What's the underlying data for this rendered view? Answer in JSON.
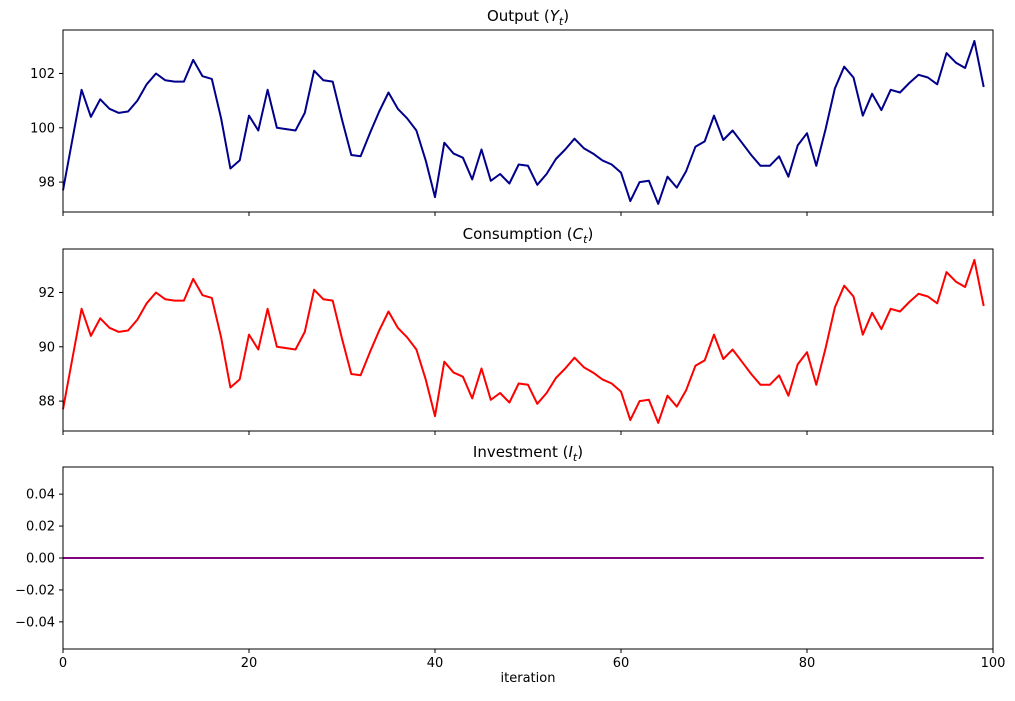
{
  "figure": {
    "xlabel": "iteration",
    "background_color": "#ffffff",
    "axes_color": "#000000",
    "x_ticks": [
      0,
      20,
      40,
      60,
      80,
      100
    ],
    "x_tick_labels": [
      "0",
      "20",
      "40",
      "60",
      "80",
      "100"
    ]
  },
  "chart_data": [
    {
      "id": "output",
      "type": "line",
      "title": {
        "prefix": "Output (",
        "symbol": "Y",
        "subscript": "t",
        "suffix": ")",
        "plain": "Output (Yt)"
      },
      "line_color": "#00008B",
      "xlim": [
        0,
        100
      ],
      "ylim": [
        96.9,
        103.6
      ],
      "y_ticks": [
        98,
        100,
        102
      ],
      "y_tick_labels": [
        "98",
        "100",
        "102"
      ],
      "show_x_tick_labels": false,
      "grid": false,
      "x_start": 0,
      "values": [
        97.7,
        99.55,
        101.4,
        100.4,
        101.05,
        100.7,
        100.55,
        100.6,
        101.0,
        101.6,
        102.0,
        101.75,
        101.7,
        101.7,
        102.5,
        101.9,
        101.8,
        100.35,
        98.5,
        98.8,
        100.45,
        99.9,
        101.4,
        100.0,
        99.95,
        99.9,
        100.55,
        102.1,
        101.75,
        101.7,
        100.3,
        99.0,
        98.95,
        99.8,
        100.6,
        101.3,
        100.7,
        100.35,
        99.9,
        98.8,
        97.45,
        99.45,
        99.05,
        98.9,
        98.1,
        99.2,
        98.05,
        98.3,
        97.95,
        98.65,
        98.6,
        97.9,
        98.3,
        98.85,
        99.2,
        99.6,
        99.25,
        99.05,
        98.8,
        98.65,
        98.35,
        97.3,
        98.0,
        98.05,
        97.2,
        98.2,
        97.8,
        98.4,
        99.3,
        99.5,
        100.45,
        99.55,
        99.9,
        99.45,
        99.0,
        98.6,
        98.6,
        98.95,
        98.2,
        99.35,
        99.8,
        98.6,
        99.95,
        101.45,
        102.25,
        101.85,
        100.45,
        101.25,
        100.65,
        101.4,
        101.3,
        101.65,
        101.95,
        101.85,
        101.6,
        102.75,
        102.4,
        102.2,
        103.2,
        101.5
      ]
    },
    {
      "id": "consumption",
      "type": "line",
      "title": {
        "prefix": "Consumption (",
        "symbol": "C",
        "subscript": "t",
        "suffix": ")",
        "plain": "Consumption (Ct)"
      },
      "line_color": "#FF0000",
      "xlim": [
        0,
        100
      ],
      "ylim": [
        86.9,
        93.6
      ],
      "y_ticks": [
        88,
        90,
        92
      ],
      "y_tick_labels": [
        "88",
        "90",
        "92"
      ],
      "show_x_tick_labels": false,
      "grid": false,
      "x_start": 0,
      "values": [
        87.7,
        89.55,
        91.4,
        90.4,
        91.05,
        90.7,
        90.55,
        90.6,
        91.0,
        91.6,
        92.0,
        91.75,
        91.7,
        91.7,
        92.5,
        91.9,
        91.8,
        90.35,
        88.5,
        88.8,
        90.45,
        89.9,
        91.4,
        90.0,
        89.95,
        89.9,
        90.55,
        92.1,
        91.75,
        91.7,
        90.3,
        89.0,
        88.95,
        89.8,
        90.6,
        91.3,
        90.7,
        90.35,
        89.9,
        88.8,
        87.45,
        89.45,
        89.05,
        88.9,
        88.1,
        89.2,
        88.05,
        88.3,
        87.95,
        88.65,
        88.6,
        87.9,
        88.3,
        88.85,
        89.2,
        89.6,
        89.25,
        89.05,
        88.8,
        88.65,
        88.35,
        87.3,
        88.0,
        88.05,
        87.2,
        88.2,
        87.8,
        88.4,
        89.3,
        89.5,
        90.45,
        89.55,
        89.9,
        89.45,
        89.0,
        88.6,
        88.6,
        88.95,
        88.2,
        89.35,
        89.8,
        88.6,
        89.95,
        91.45,
        92.25,
        91.85,
        90.45,
        91.25,
        90.65,
        91.4,
        91.3,
        91.65,
        91.95,
        91.85,
        91.6,
        92.75,
        92.4,
        92.2,
        93.2,
        91.5
      ]
    },
    {
      "id": "investment",
      "type": "line",
      "title": {
        "prefix": "Investment (",
        "symbol": "I",
        "subscript": "t",
        "suffix": ")",
        "plain": "Investment (It)"
      },
      "line_color": "#800080",
      "xlim": [
        0,
        100
      ],
      "ylim": [
        -0.057,
        0.057
      ],
      "y_ticks": [
        -0.04,
        -0.02,
        0.0,
        0.02,
        0.04
      ],
      "y_tick_labels": [
        "−0.04",
        "−0.02",
        "0.00",
        "0.02",
        "0.04"
      ],
      "show_x_tick_labels": true,
      "grid": false,
      "x_start": 0,
      "constant_value": 0.0,
      "n_points": 100
    }
  ]
}
